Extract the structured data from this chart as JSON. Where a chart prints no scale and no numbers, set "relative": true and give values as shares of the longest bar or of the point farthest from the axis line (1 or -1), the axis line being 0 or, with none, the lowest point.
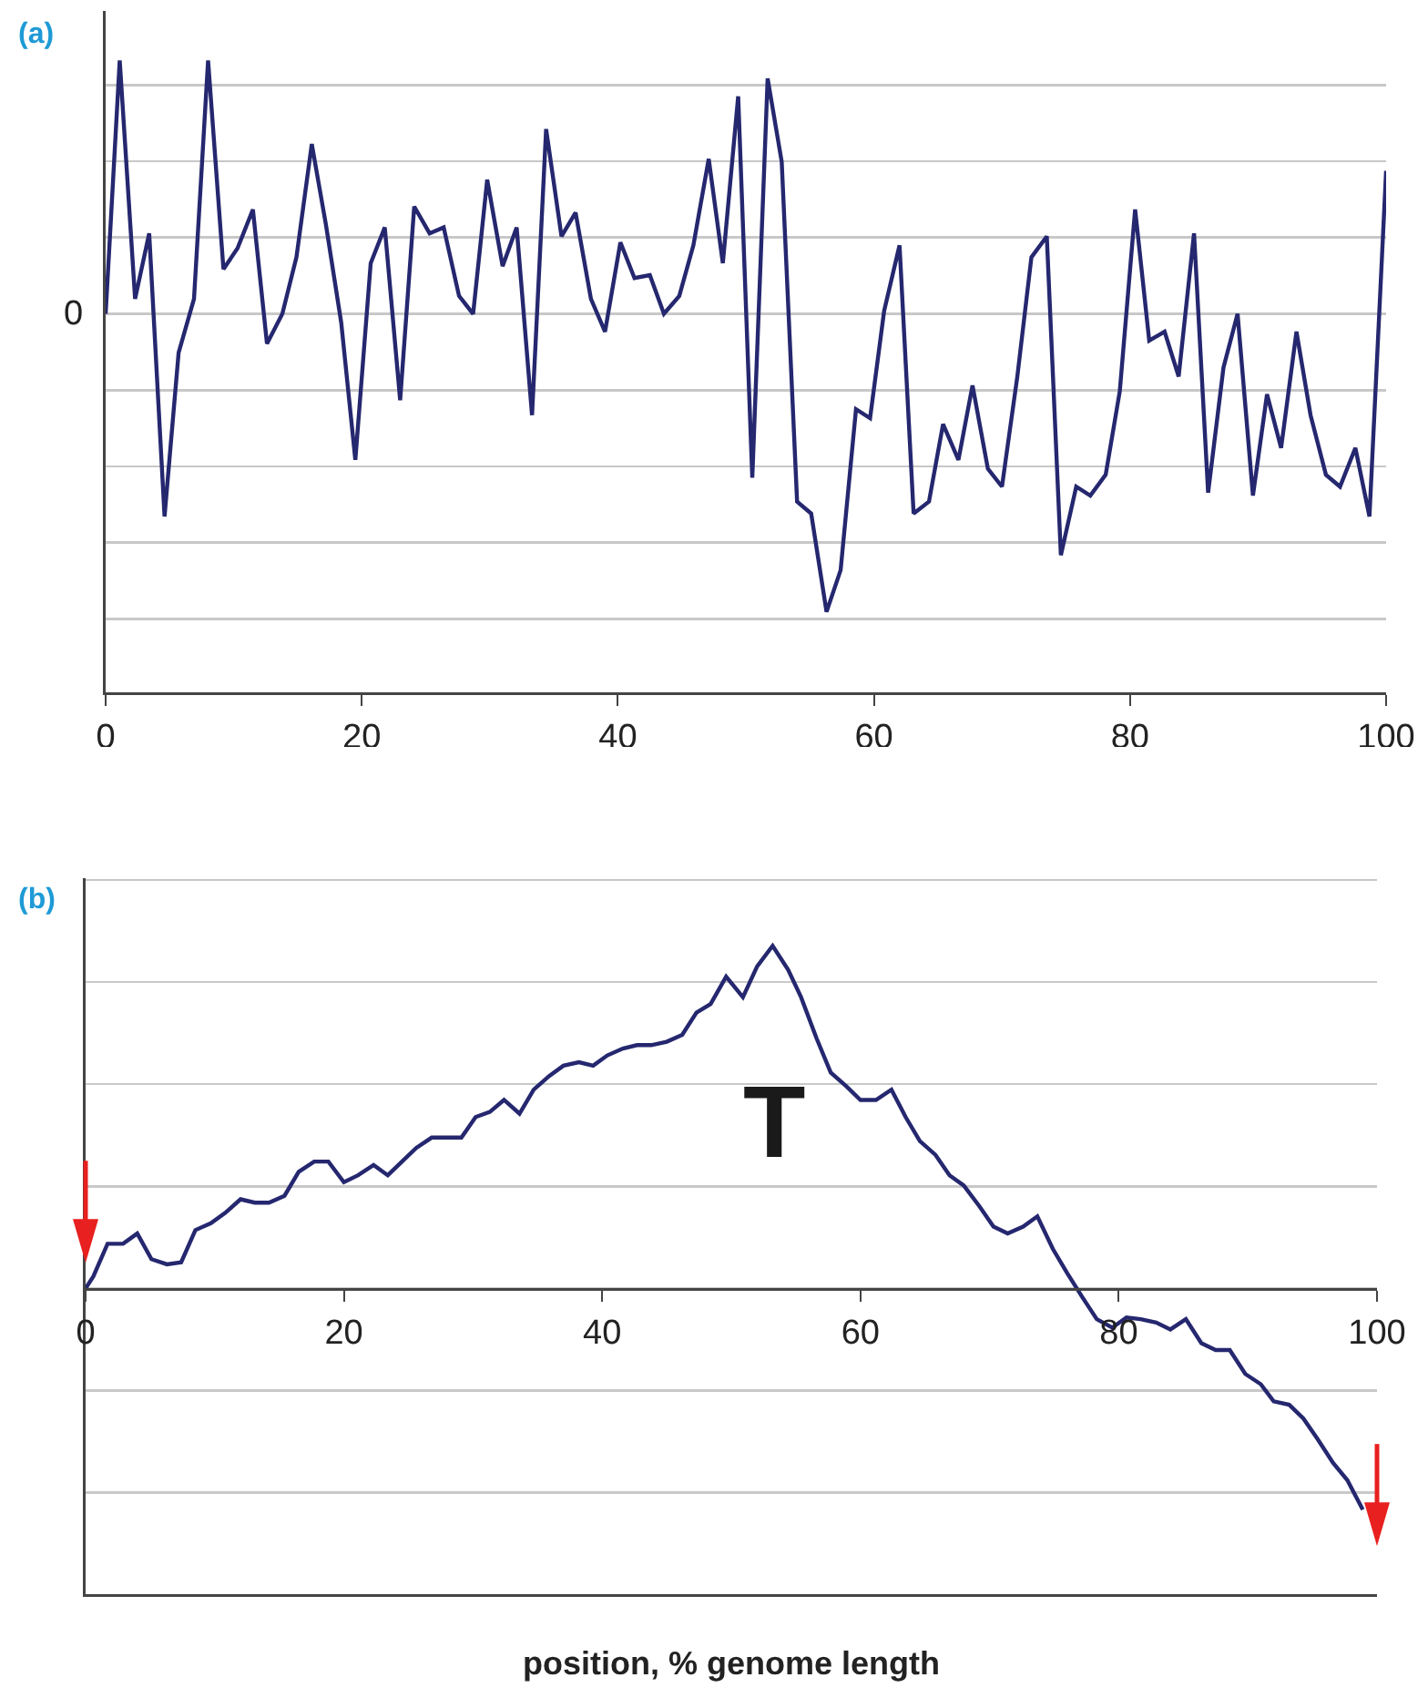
{
  "chart_data": [
    {
      "type": "line",
      "title": "(a)",
      "relative": true,
      "grid": "y",
      "xlim": [
        0,
        100
      ],
      "xticks": [
        0,
        20,
        40,
        60,
        80,
        100
      ],
      "annotations": [
        "0"
      ],
      "x": [
        0,
        1.1,
        2.3,
        3.4,
        4.6,
        5.7,
        6.9,
        8,
        9.2,
        10.3,
        11.5,
        12.6,
        13.8,
        14.9,
        16.1,
        17.2,
        18.4,
        19.5,
        20.7,
        21.8,
        23,
        24.1,
        25.3,
        26.4,
        27.6,
        28.7,
        29.8,
        31,
        32.1,
        33.3,
        34.4,
        35.6,
        36.7,
        37.9,
        39,
        40.2,
        41.3,
        42.5,
        43.6,
        44.8,
        45.9,
        47.1,
        48.2,
        49.4,
        50.5,
        51.7,
        52.8,
        54,
        55.1,
        56.3,
        57.4,
        58.6,
        59.7,
        60.8,
        62,
        63.1,
        64.3,
        65.4,
        66.6,
        67.7,
        68.9,
        70,
        71.2,
        72.3,
        73.5,
        74.6,
        75.8,
        76.9,
        78.1,
        79.2,
        80.4,
        81.5,
        82.7,
        83.8,
        85,
        86.1,
        87.3,
        88.4,
        89.6,
        90.7,
        91.8,
        93,
        94.1,
        95.3,
        96.4,
        97.6,
        98.7,
        100
      ],
      "series": [
        {
          "color": "#25276f",
          "values": [
            0,
            0.85,
            0.05,
            0.27,
            -0.68,
            -0.13,
            0.05,
            0.85,
            0.15,
            0.22,
            0.35,
            -0.1,
            0,
            0.19,
            0.57,
            0.3,
            -0.03,
            -0.49,
            0.17,
            0.29,
            -0.29,
            0.36,
            0.27,
            0.29,
            0.06,
            0,
            0.45,
            0.16,
            0.29,
            -0.34,
            0.62,
            0.26,
            0.34,
            0.05,
            -0.06,
            0.24,
            0.12,
            0.13,
            0,
            0.06,
            0.23,
            0.52,
            0.17,
            0.73,
            -0.55,
            0.79,
            0.51,
            -0.63,
            -0.67,
            -1,
            -0.86,
            -0.32,
            -0.35,
            0.01,
            0.23,
            -0.67,
            -0.63,
            -0.37,
            -0.49,
            -0.24,
            -0.52,
            -0.58,
            -0.21,
            0.19,
            0.26,
            -0.81,
            -0.58,
            -0.61,
            -0.54,
            -0.26,
            0.35,
            -0.09,
            -0.06,
            -0.21,
            0.27,
            -0.6,
            -0.18,
            0,
            -0.61,
            -0.27,
            -0.45,
            -0.06,
            -0.34,
            -0.54,
            -0.58,
            -0.45,
            -0.68,
            0.48
          ]
        }
      ]
    },
    {
      "type": "line",
      "title": "(b)",
      "xlabel": "position, % genome length",
      "relative": true,
      "grid": "y",
      "xlim": [
        0,
        100
      ],
      "xticks": [
        0,
        20,
        40,
        60,
        80,
        100
      ],
      "annotations": [
        "T"
      ],
      "x": [
        0,
        0.6,
        1.7,
        2.9,
        4,
        5.1,
        6.3,
        7.4,
        8.5,
        9.7,
        10.8,
        12,
        13.1,
        14.2,
        15.4,
        16.5,
        17.7,
        18.8,
        20,
        21.1,
        22.3,
        23.4,
        24.5,
        25.6,
        26.8,
        27.9,
        29.1,
        30.2,
        31.3,
        32.4,
        33.6,
        34.7,
        35.9,
        37,
        38.2,
        39.3,
        40.4,
        41.6,
        42.7,
        43.8,
        45,
        46.2,
        47.3,
        48.4,
        49.6,
        50.9,
        52,
        53.2,
        54.4,
        55.4,
        56.6,
        57.7,
        58.9,
        60,
        61.2,
        62.4,
        63.5,
        64.6,
        65.8,
        66.9,
        68,
        69.2,
        70.3,
        71.4,
        72.6,
        73.7,
        74.9,
        76,
        77.2,
        78.3,
        79.5,
        80.6,
        81.7,
        82.9,
        84,
        85.2,
        86.4,
        87.5,
        88.6,
        89.8,
        91,
        92,
        93.2,
        94.3,
        95.4,
        96.6,
        97.7,
        98.9
      ],
      "series": [
        {
          "color": "#25276f",
          "values": [
            0,
            0.035,
            0.13,
            0.13,
            0.16,
            0.085,
            0.07,
            0.076,
            0.17,
            0.19,
            0.22,
            0.26,
            0.25,
            0.25,
            0.27,
            0.34,
            0.37,
            0.37,
            0.31,
            0.33,
            0.36,
            0.33,
            0.37,
            0.41,
            0.44,
            0.44,
            0.44,
            0.5,
            0.515,
            0.55,
            0.51,
            0.58,
            0.62,
            0.65,
            0.66,
            0.65,
            0.68,
            0.7,
            0.71,
            0.71,
            0.72,
            0.74,
            0.805,
            0.83,
            0.91,
            0.85,
            0.94,
            1,
            0.93,
            0.85,
            0.73,
            0.63,
            0.59,
            0.55,
            0.55,
            0.58,
            0.5,
            0.43,
            0.39,
            0.33,
            0.3,
            0.24,
            0.18,
            0.16,
            0.18,
            0.21,
            0.115,
            0.045,
            -0.027,
            -0.09,
            -0.115,
            -0.085,
            -0.09,
            -0.1,
            -0.12,
            -0.09,
            -0.16,
            -0.18,
            -0.18,
            -0.25,
            -0.28,
            -0.33,
            -0.34,
            -0.38,
            -0.44,
            -0.51,
            -0.56,
            -0.646
          ]
        }
      ]
    }
  ]
}
